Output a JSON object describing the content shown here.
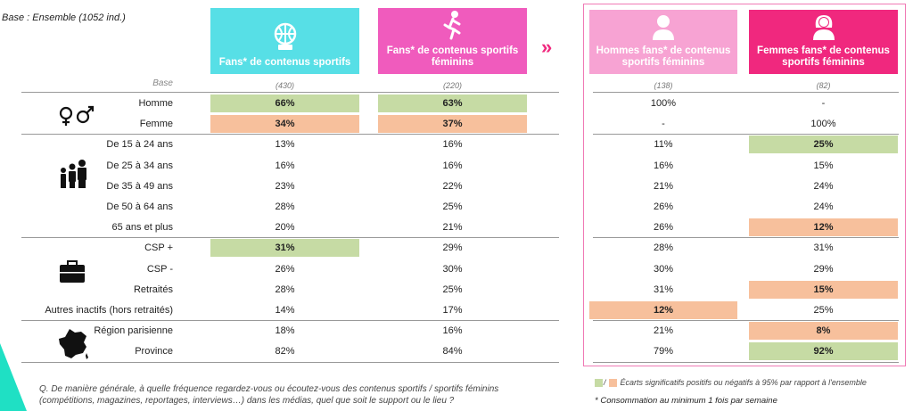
{
  "base_note": "Base : Ensemble (1052 ind.)",
  "base_label": "Base",
  "columns": [
    {
      "title": "Fans* de contenus sportifs",
      "icon": "basketball-icon",
      "base": "(430)"
    },
    {
      "title": "Fans* de contenus sportifs féminins",
      "icon": "female-runner-icon",
      "base": "(220)"
    },
    {
      "title": "Hommes fans* de contenus sportifs féminins",
      "icon": "man-avatar-icon",
      "base": "(138)"
    },
    {
      "title": "Femmes fans* de contenus sportifs féminins",
      "icon": "woman-avatar-icon",
      "base": "(82)"
    }
  ],
  "rows": [
    {
      "label": "Homme",
      "values": [
        "66%",
        "63%",
        "100%",
        "-"
      ],
      "highlight": [
        "g",
        "g",
        "",
        ""
      ]
    },
    {
      "label": "Femme",
      "values": [
        "34%",
        "37%",
        "-",
        "100%"
      ],
      "highlight": [
        "o",
        "o",
        "",
        ""
      ]
    },
    {
      "label": "De 15 à 24 ans",
      "values": [
        "13%",
        "16%",
        "11%",
        "25%"
      ],
      "highlight": [
        "",
        "",
        "",
        "g"
      ]
    },
    {
      "label": "De 25 à 34 ans",
      "values": [
        "16%",
        "16%",
        "16%",
        "15%"
      ],
      "highlight": [
        "",
        "",
        "",
        ""
      ]
    },
    {
      "label": "De 35 à 49 ans",
      "values": [
        "23%",
        "22%",
        "21%",
        "24%"
      ],
      "highlight": [
        "",
        "",
        "",
        ""
      ]
    },
    {
      "label": "De 50 à 64 ans",
      "values": [
        "28%",
        "25%",
        "26%",
        "24%"
      ],
      "highlight": [
        "",
        "",
        "",
        ""
      ]
    },
    {
      "label": "65 ans et plus",
      "values": [
        "20%",
        "21%",
        "26%",
        "12%"
      ],
      "highlight": [
        "",
        "",
        "",
        "o"
      ]
    },
    {
      "label": "CSP +",
      "values": [
        "31%",
        "29%",
        "28%",
        "31%"
      ],
      "highlight": [
        "g",
        "",
        "",
        ""
      ]
    },
    {
      "label": "CSP -",
      "values": [
        "26%",
        "30%",
        "30%",
        "29%"
      ],
      "highlight": [
        "",
        "",
        "",
        ""
      ]
    },
    {
      "label": "Retraités",
      "values": [
        "28%",
        "25%",
        "31%",
        "15%"
      ],
      "highlight": [
        "",
        "",
        "",
        "o"
      ]
    },
    {
      "label": "Autres inactifs (hors retraités)",
      "values": [
        "14%",
        "17%",
        "12%",
        "25%"
      ],
      "highlight": [
        "",
        "",
        "o",
        ""
      ]
    },
    {
      "label": "Région parisienne",
      "values": [
        "18%",
        "16%",
        "21%",
        "8%"
      ],
      "highlight": [
        "",
        "",
        "",
        "o"
      ]
    },
    {
      "label": "Province",
      "values": [
        "82%",
        "84%",
        "79%",
        "92%"
      ],
      "highlight": [
        "",
        "",
        "",
        "g"
      ]
    }
  ],
  "group_icons": [
    "gender-symbols-icon",
    "age-people-icon",
    "briefcase-icon",
    "france-map-icon"
  ],
  "legend": {
    "sep": "/",
    "text": "Écarts significatifs positifs ou négatifs  à 95% par rapport à l'ensemble",
    "pos_color": "#c6dba4",
    "neg_color": "#f7c09c"
  },
  "footnote": "* Consommation au minimum 1 fois par semaine",
  "question": "Q. De manière générale, à quelle fréquence regardez-vous ou écoutez-vous des contenus sportifs  / sportifs féminins (compétitions, magazines, reportages, interviews…) dans les médias, quel que soit le support ou le lieu ?",
  "chevron": "»",
  "accent_colors": {
    "teal": "#57dfe6",
    "pink": "#f05bbd",
    "light_pink": "#f7a3d3",
    "hot_pink": "#f0287e"
  }
}
